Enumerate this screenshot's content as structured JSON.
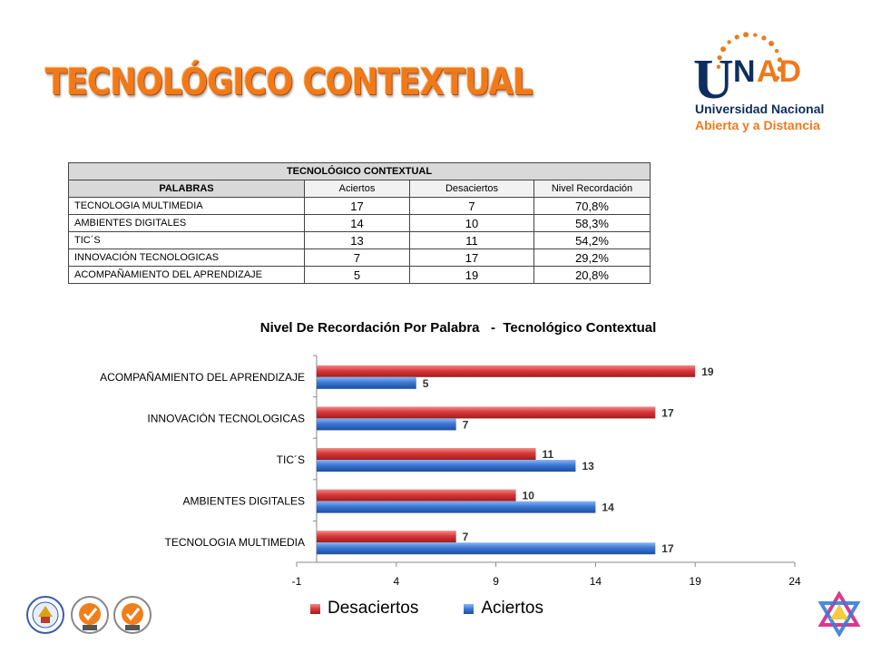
{
  "page": {
    "heading": "TECNOLÓGICO CONTEXTUAL"
  },
  "logo": {
    "wordmark_u": "U",
    "wordmark_n": "N",
    "wordmark_ad": "AD",
    "line1": "Universidad Nacional",
    "line2": "Abierta y a Distancia"
  },
  "table": {
    "caption": "TECNOLÓGICO CONTEXTUAL",
    "headers": [
      "PALABRAS",
      "Aciertos",
      "Desaciertos",
      "Nivel  Recordación"
    ],
    "rows": [
      {
        "palabra": "TECNOLOGIA MULTIMEDIA",
        "aciertos": "17",
        "desaciertos": "7",
        "nivel": "70,8%"
      },
      {
        "palabra": "AMBIENTES DIGITALES",
        "aciertos": "14",
        "desaciertos": "10",
        "nivel": "58,3%"
      },
      {
        "palabra": "TIC´S",
        "aciertos": "13",
        "desaciertos": "11",
        "nivel": "54,2%"
      },
      {
        "palabra": "INNOVACIÓN TECNOLOGICAS",
        "aciertos": "7",
        "desaciertos": "17",
        "nivel": "29,2%"
      },
      {
        "palabra": "ACOMPAÑAMIENTO DEL APRENDIZAJE",
        "aciertos": "5",
        "desaciertos": "19",
        "nivel": "20,8%"
      }
    ]
  },
  "chart_data": {
    "type": "bar",
    "orientation": "horizontal",
    "title": "Nivel De Recordación Por Palabra   -  Tecnológico Contextual",
    "categories": [
      "TECNOLOGIA MULTIMEDIA",
      "AMBIENTES DIGITALES",
      "TIC´S",
      "INNOVACIÓN TECNOLOGICAS",
      "ACOMPAÑAMIENTO DEL APRENDIZAJE"
    ],
    "series": [
      {
        "name": "Desaciertos",
        "values": [
          7,
          10,
          11,
          17,
          19
        ],
        "color": "#d9383a"
      },
      {
        "name": "Aciertos",
        "values": [
          17,
          14,
          13,
          7,
          5
        ],
        "color": "#3c78d8"
      }
    ],
    "xlim": [
      -1,
      24
    ],
    "xticks": [
      "-1",
      "4",
      "9",
      "14",
      "19",
      "24"
    ],
    "grid": false,
    "legend_position": "bottom"
  },
  "colors": {
    "banner": "#f07a1a",
    "logo_blue": "#0d2e5e",
    "logo_orange": "#ee7a1c"
  }
}
